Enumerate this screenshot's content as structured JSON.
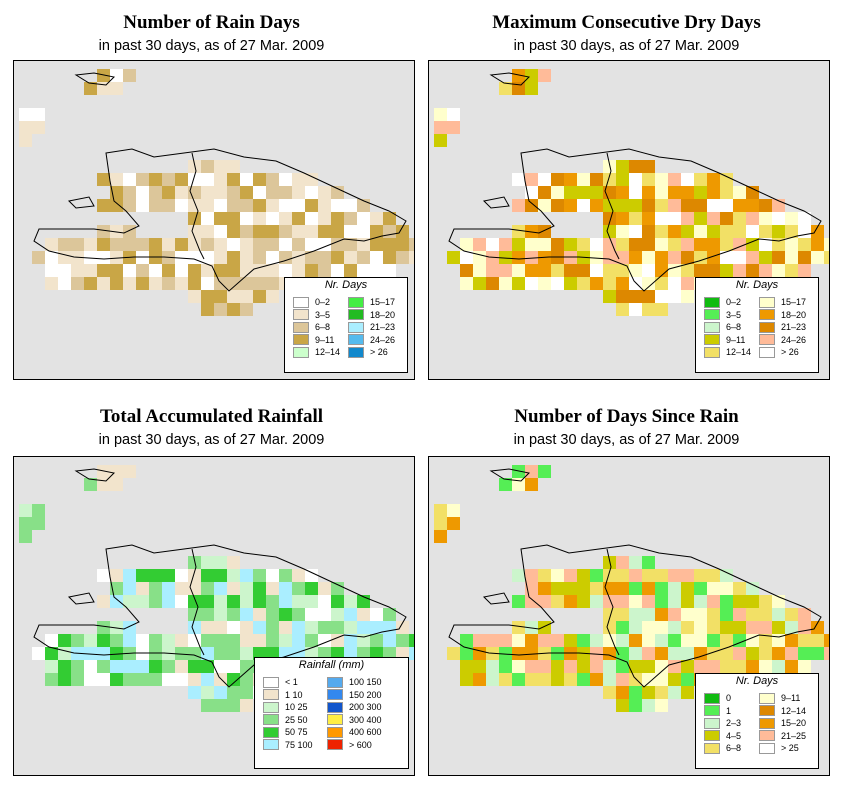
{
  "panels": [
    {
      "id": "rain-days",
      "title": "Number of Rain Days",
      "subtitle": "in past 30 days, as of  27 Mar. 2009",
      "legend": {
        "title": "Nr. Days",
        "items": [
          {
            "label": "0–2",
            "color": "#ffffff"
          },
          {
            "label": "3–5",
            "color": "#f2e4cc"
          },
          {
            "label": "6–8",
            "color": "#dcc69a"
          },
          {
            "label": "9–11",
            "color": "#c9a646"
          },
          {
            "label": "12–14",
            "color": "#ccffcc"
          },
          {
            "label": "15–17",
            "color": "#44ee44"
          },
          {
            "label": "18–20",
            "color": "#22bb22"
          },
          {
            "label": "21–23",
            "color": "#aaeeff"
          },
          {
            "label": "24–26",
            "color": "#55bbee"
          },
          {
            "label": "> 26",
            "color": "#1188cc"
          }
        ]
      },
      "grid_palette": [
        "#ffffff",
        "#f2e4cc",
        "#dcc69a",
        "#c9a646"
      ]
    },
    {
      "id": "max-dry-days",
      "title": "Maximum Consecutive Dry Days",
      "subtitle": "in past 30 days, as of  27 Mar. 2009",
      "legend": {
        "title": "Nr. Days",
        "items": [
          {
            "label": "0–2",
            "color": "#11bb11"
          },
          {
            "label": "3–5",
            "color": "#55ee55"
          },
          {
            "label": "6–8",
            "color": "#ccf5cc"
          },
          {
            "label": "9–11",
            "color": "#cccc00"
          },
          {
            "label": "12–14",
            "color": "#f2e066"
          },
          {
            "label": "15–17",
            "color": "#ffffcc"
          },
          {
            "label": "18–20",
            "color": "#ee9900"
          },
          {
            "label": "21–23",
            "color": "#dd8800"
          },
          {
            "label": "24–26",
            "color": "#ffbb99"
          },
          {
            "label": "> 26",
            "color": "#ffffff"
          }
        ]
      },
      "grid_palette": [
        "#ffffcc",
        "#f2e066",
        "#ee9900",
        "#dd8800",
        "#ffbb99",
        "#ffffff",
        "#cccc00"
      ]
    },
    {
      "id": "total-rainfall",
      "title": "Total Accumulated Rainfall",
      "subtitle": "in past 30 days, as of  27 Mar. 2009",
      "legend": {
        "title": "Rainfall (mm)",
        "items": [
          {
            "label": "< 1",
            "color": "#ffffff"
          },
          {
            "label": "1   10",
            "color": "#f2e4cc"
          },
          {
            "label": "10   25",
            "color": "#ccf5cc"
          },
          {
            "label": "25   50",
            "color": "#88e088"
          },
          {
            "label": "50   75",
            "color": "#33cc33"
          },
          {
            "label": "75  100",
            "color": "#aaeeff"
          },
          {
            "label": "100  150",
            "color": "#55aaee"
          },
          {
            "label": "150  200",
            "color": "#3388ee"
          },
          {
            "label": "200  300",
            "color": "#1155cc"
          },
          {
            "label": "300  400",
            "color": "#ffee44"
          },
          {
            "label": "400  600",
            "color": "#ff9900"
          },
          {
            "label": "> 600",
            "color": "#ee2200"
          }
        ]
      },
      "grid_palette": [
        "#ccf5cc",
        "#88e088",
        "#88e088",
        "#33cc33",
        "#f2e4cc",
        "#ffffff",
        "#aaeeff"
      ]
    },
    {
      "id": "days-since-rain",
      "title": "Number of Days Since Rain",
      "subtitle": "in past 30 days, as of  27 Mar. 2009",
      "legend": {
        "title": "Nr. Days",
        "items": [
          {
            "label": "0",
            "color": "#11bb11"
          },
          {
            "label": "1",
            "color": "#55ee55"
          },
          {
            "label": "2–3",
            "color": "#ccf5cc"
          },
          {
            "label": "4–5",
            "color": "#cccc00"
          },
          {
            "label": "6–8",
            "color": "#f2e066"
          },
          {
            "label": "9–11",
            "color": "#ffffcc"
          },
          {
            "label": "12–14",
            "color": "#dd8800"
          },
          {
            "label": "15–20",
            "color": "#ee9900"
          },
          {
            "label": "21–25",
            "color": "#ffbb99"
          },
          {
            "label": "> 25",
            "color": "#ffffff"
          }
        ]
      },
      "grid_palette": [
        "#cccc00",
        "#ccf5cc",
        "#f2e066",
        "#ffbb99",
        "#ee9900",
        "#ffffcc",
        "#55ee55"
      ]
    }
  ]
}
